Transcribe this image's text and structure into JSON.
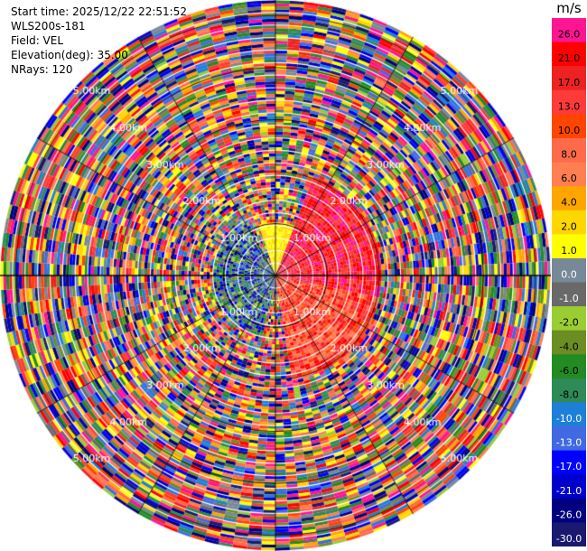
{
  "header": {
    "start_time": "Start time: 2025/12/22 22:51:52",
    "device": "WLS200s-181",
    "field": "Field: VEL",
    "elevation": "Elevation(deg): 35.00",
    "nrays": "NRays: 120"
  },
  "colorbar": {
    "unit": "m/s",
    "ticks": [
      "26.0",
      "21.0",
      "17.0",
      "13.0",
      "10.0",
      "8.0",
      "6.0",
      "4.0",
      "2.0",
      "1.0",
      "0.0",
      "-1.0",
      "-2.0",
      "-4.0",
      "-6.0",
      "-8.0",
      "-10.0",
      "-13.0",
      "-17.0",
      "-21.0",
      "-26.0",
      "-30.0"
    ],
    "colors": [
      "#ff1493",
      "#ff0000",
      "#ee2222",
      "#ff3a3a",
      "#ff4500",
      "#ff6a4a",
      "#ff7f50",
      "#ffa500",
      "#ffd700",
      "#ffff00",
      "#778899",
      "#696969",
      "#9acd32",
      "#6b8e23",
      "#228b22",
      "#2e8b57",
      "#1e7fd8",
      "#4169e1",
      "#0000ff",
      "#0000cd",
      "#000080",
      "#191970"
    ]
  },
  "chart_data": {
    "type": "heatmap",
    "subtype": "ppi-polar",
    "field": "VEL",
    "units": "m/s",
    "elevation_deg": 35.0,
    "nrays": 120,
    "range_labels": [
      "1.00km",
      "2.00km",
      "3.00km",
      "4.00km",
      "5.00km"
    ],
    "range_rings_km": [
      1,
      2,
      3,
      4,
      5
    ],
    "max_range_km": 5.3,
    "color_scale": {
      "boundaries": [
        -30.0,
        -26.0,
        -21.0,
        -17.0,
        -13.0,
        -10.0,
        -8.0,
        -6.0,
        -4.0,
        -2.0,
        -1.0,
        0.0,
        1.0,
        2.0,
        4.0,
        6.0,
        8.0,
        10.0,
        13.0,
        17.0,
        21.0,
        26.0
      ]
    },
    "notes_visible": [
      "near-field positive (pink/red) velocities toward east-northeast",
      "near-field yellow cluster near center north"
    ]
  }
}
